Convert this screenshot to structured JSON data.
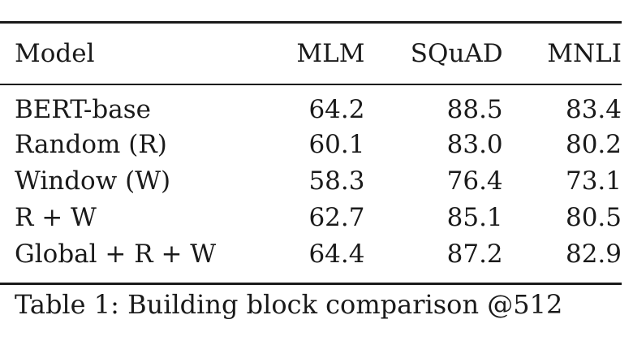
{
  "table": {
    "headers": [
      "Model",
      "MLM",
      "SQuAD",
      "MNLI"
    ],
    "rows": [
      [
        "BERT-base",
        "64.2",
        "88.5",
        "83.4"
      ],
      [
        "Random (R)",
        "60.1",
        "83.0",
        "80.2"
      ],
      [
        "Window (W)",
        "58.3",
        "76.4",
        "73.1"
      ],
      [
        "R + W",
        "62.7",
        "85.1",
        "80.5"
      ],
      [
        "Global + R + W",
        "64.4",
        "87.2",
        "82.9"
      ]
    ]
  },
  "caption": "Table 1: Building block comparison @512"
}
